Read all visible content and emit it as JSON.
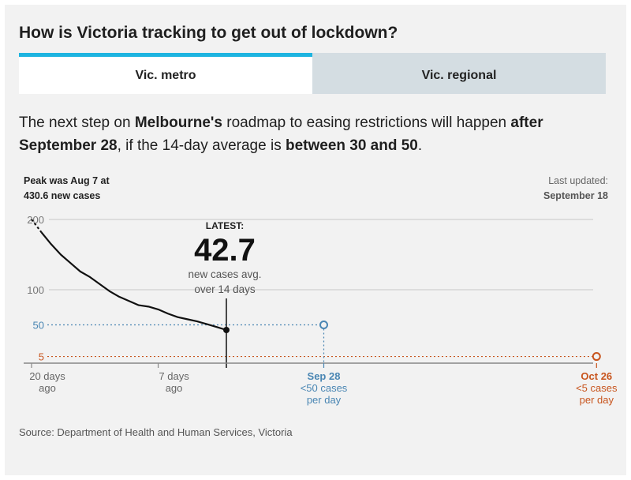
{
  "title": "How is Victoria tracking to get out of lockdown?",
  "tabs": [
    {
      "label": "Vic. metro",
      "active": true
    },
    {
      "label": "Vic. regional",
      "active": false
    }
  ],
  "intro": {
    "p1": "The next step on ",
    "b1": "Melbourne's",
    "p2": " roadmap to easing restrictions will happen ",
    "b2": "after September 28",
    "p3": ", if the 14-day average is ",
    "b3": "between 30 and 50",
    "p4": "."
  },
  "source": "Source: Department of Health and Human Services, Victoria",
  "colors": {
    "accent": "#1db4e0",
    "blue_target": "#4a86b3",
    "orange_target": "#c8551e",
    "line": "#111111"
  },
  "chart_data": {
    "type": "line",
    "peak_note": [
      "Peak was Aug 7 at",
      "430.6 new cases"
    ],
    "last_updated_label": "Last updated:",
    "last_updated_date": "September 18",
    "y_ticks": [
      200,
      100,
      50,
      5
    ],
    "ylim": [
      0,
      200
    ],
    "x_ticks": [
      {
        "x": -20,
        "lines": [
          "20 days",
          "ago"
        ]
      },
      {
        "x": -7,
        "lines": [
          "7 days",
          "ago"
        ]
      }
    ],
    "series": [
      {
        "x": [
          -20,
          -19,
          -18,
          -17,
          -16,
          -15,
          -14,
          -13,
          -12,
          -11,
          -10,
          -9,
          -8,
          -7,
          -6,
          -5,
          -4,
          -3,
          -2,
          -1,
          0
        ],
        "y": [
          200,
          182,
          165,
          150,
          138,
          126,
          118,
          108,
          98,
          90,
          84,
          78,
          76,
          72,
          66,
          61,
          58,
          55,
          51,
          47,
          42.7
        ]
      }
    ],
    "latest": {
      "label": "LATEST:",
      "value": "42.7",
      "sub": [
        "new cases avg.",
        "over 14 days"
      ]
    },
    "targets": [
      {
        "x": 10,
        "y": 50,
        "date": "Sep 28",
        "lines": [
          "<50 cases",
          "per day"
        ],
        "color": "#4a86b3"
      },
      {
        "x": 38,
        "y": 5,
        "date": "Oct 26",
        "lines": [
          "<5 cases",
          "per day"
        ],
        "color": "#c8551e"
      }
    ]
  }
}
